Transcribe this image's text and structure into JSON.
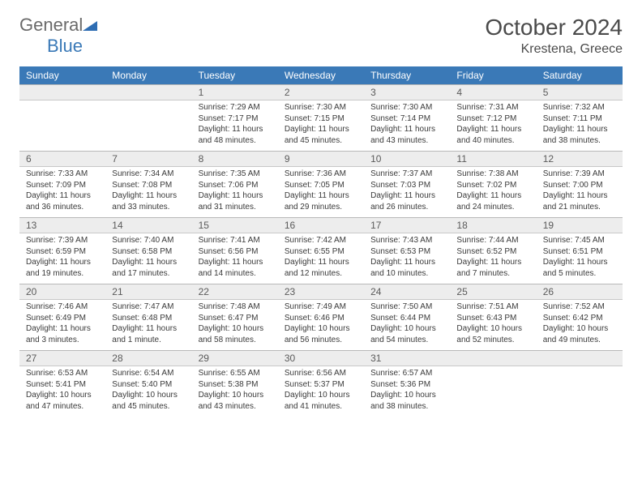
{
  "logo": {
    "part1": "General",
    "part2": "Blue"
  },
  "title": "October 2024",
  "location": "Krestena, Greece",
  "header_bg": "#3a79b7",
  "daynum_bg": "#ededed",
  "days": [
    "Sunday",
    "Monday",
    "Tuesday",
    "Wednesday",
    "Thursday",
    "Friday",
    "Saturday"
  ],
  "weeks": [
    [
      null,
      null,
      {
        "n": "1",
        "sr": "Sunrise: 7:29 AM",
        "ss": "Sunset: 7:17 PM",
        "dl": "Daylight: 11 hours and 48 minutes."
      },
      {
        "n": "2",
        "sr": "Sunrise: 7:30 AM",
        "ss": "Sunset: 7:15 PM",
        "dl": "Daylight: 11 hours and 45 minutes."
      },
      {
        "n": "3",
        "sr": "Sunrise: 7:30 AM",
        "ss": "Sunset: 7:14 PM",
        "dl": "Daylight: 11 hours and 43 minutes."
      },
      {
        "n": "4",
        "sr": "Sunrise: 7:31 AM",
        "ss": "Sunset: 7:12 PM",
        "dl": "Daylight: 11 hours and 40 minutes."
      },
      {
        "n": "5",
        "sr": "Sunrise: 7:32 AM",
        "ss": "Sunset: 7:11 PM",
        "dl": "Daylight: 11 hours and 38 minutes."
      }
    ],
    [
      {
        "n": "6",
        "sr": "Sunrise: 7:33 AM",
        "ss": "Sunset: 7:09 PM",
        "dl": "Daylight: 11 hours and 36 minutes."
      },
      {
        "n": "7",
        "sr": "Sunrise: 7:34 AM",
        "ss": "Sunset: 7:08 PM",
        "dl": "Daylight: 11 hours and 33 minutes."
      },
      {
        "n": "8",
        "sr": "Sunrise: 7:35 AM",
        "ss": "Sunset: 7:06 PM",
        "dl": "Daylight: 11 hours and 31 minutes."
      },
      {
        "n": "9",
        "sr": "Sunrise: 7:36 AM",
        "ss": "Sunset: 7:05 PM",
        "dl": "Daylight: 11 hours and 29 minutes."
      },
      {
        "n": "10",
        "sr": "Sunrise: 7:37 AM",
        "ss": "Sunset: 7:03 PM",
        "dl": "Daylight: 11 hours and 26 minutes."
      },
      {
        "n": "11",
        "sr": "Sunrise: 7:38 AM",
        "ss": "Sunset: 7:02 PM",
        "dl": "Daylight: 11 hours and 24 minutes."
      },
      {
        "n": "12",
        "sr": "Sunrise: 7:39 AM",
        "ss": "Sunset: 7:00 PM",
        "dl": "Daylight: 11 hours and 21 minutes."
      }
    ],
    [
      {
        "n": "13",
        "sr": "Sunrise: 7:39 AM",
        "ss": "Sunset: 6:59 PM",
        "dl": "Daylight: 11 hours and 19 minutes."
      },
      {
        "n": "14",
        "sr": "Sunrise: 7:40 AM",
        "ss": "Sunset: 6:58 PM",
        "dl": "Daylight: 11 hours and 17 minutes."
      },
      {
        "n": "15",
        "sr": "Sunrise: 7:41 AM",
        "ss": "Sunset: 6:56 PM",
        "dl": "Daylight: 11 hours and 14 minutes."
      },
      {
        "n": "16",
        "sr": "Sunrise: 7:42 AM",
        "ss": "Sunset: 6:55 PM",
        "dl": "Daylight: 11 hours and 12 minutes."
      },
      {
        "n": "17",
        "sr": "Sunrise: 7:43 AM",
        "ss": "Sunset: 6:53 PM",
        "dl": "Daylight: 11 hours and 10 minutes."
      },
      {
        "n": "18",
        "sr": "Sunrise: 7:44 AM",
        "ss": "Sunset: 6:52 PM",
        "dl": "Daylight: 11 hours and 7 minutes."
      },
      {
        "n": "19",
        "sr": "Sunrise: 7:45 AM",
        "ss": "Sunset: 6:51 PM",
        "dl": "Daylight: 11 hours and 5 minutes."
      }
    ],
    [
      {
        "n": "20",
        "sr": "Sunrise: 7:46 AM",
        "ss": "Sunset: 6:49 PM",
        "dl": "Daylight: 11 hours and 3 minutes."
      },
      {
        "n": "21",
        "sr": "Sunrise: 7:47 AM",
        "ss": "Sunset: 6:48 PM",
        "dl": "Daylight: 11 hours and 1 minute."
      },
      {
        "n": "22",
        "sr": "Sunrise: 7:48 AM",
        "ss": "Sunset: 6:47 PM",
        "dl": "Daylight: 10 hours and 58 minutes."
      },
      {
        "n": "23",
        "sr": "Sunrise: 7:49 AM",
        "ss": "Sunset: 6:46 PM",
        "dl": "Daylight: 10 hours and 56 minutes."
      },
      {
        "n": "24",
        "sr": "Sunrise: 7:50 AM",
        "ss": "Sunset: 6:44 PM",
        "dl": "Daylight: 10 hours and 54 minutes."
      },
      {
        "n": "25",
        "sr": "Sunrise: 7:51 AM",
        "ss": "Sunset: 6:43 PM",
        "dl": "Daylight: 10 hours and 52 minutes."
      },
      {
        "n": "26",
        "sr": "Sunrise: 7:52 AM",
        "ss": "Sunset: 6:42 PM",
        "dl": "Daylight: 10 hours and 49 minutes."
      }
    ],
    [
      {
        "n": "27",
        "sr": "Sunrise: 6:53 AM",
        "ss": "Sunset: 5:41 PM",
        "dl": "Daylight: 10 hours and 47 minutes."
      },
      {
        "n": "28",
        "sr": "Sunrise: 6:54 AM",
        "ss": "Sunset: 5:40 PM",
        "dl": "Daylight: 10 hours and 45 minutes."
      },
      {
        "n": "29",
        "sr": "Sunrise: 6:55 AM",
        "ss": "Sunset: 5:38 PM",
        "dl": "Daylight: 10 hours and 43 minutes."
      },
      {
        "n": "30",
        "sr": "Sunrise: 6:56 AM",
        "ss": "Sunset: 5:37 PM",
        "dl": "Daylight: 10 hours and 41 minutes."
      },
      {
        "n": "31",
        "sr": "Sunrise: 6:57 AM",
        "ss": "Sunset: 5:36 PM",
        "dl": "Daylight: 10 hours and 38 minutes."
      },
      null,
      null
    ]
  ]
}
